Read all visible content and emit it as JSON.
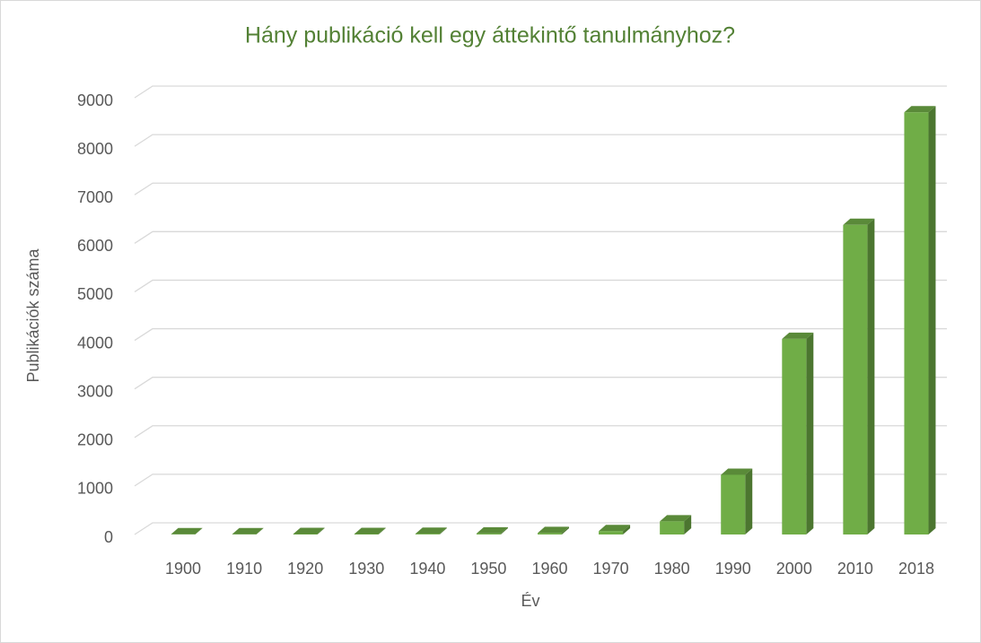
{
  "chart_data": {
    "type": "bar3d",
    "title": "Hány publikáció kell egy áttekintő tanulmányhoz?",
    "x_label": "Év",
    "y_label": "Publikációk száma",
    "categories": [
      "1900",
      "1910",
      "1920",
      "1930",
      "1940",
      "1950",
      "1960",
      "1970",
      "1980",
      "1990",
      "2000",
      "2010",
      "2018"
    ],
    "values": [
      5,
      5,
      10,
      10,
      15,
      20,
      30,
      70,
      270,
      1230,
      4030,
      6380,
      8700
    ],
    "color": "#70ad47",
    "ylim": [
      0,
      9000
    ],
    "yticks": [
      0,
      1000,
      2000,
      3000,
      4000,
      5000,
      6000,
      7000,
      8000,
      9000
    ],
    "grid": true
  }
}
